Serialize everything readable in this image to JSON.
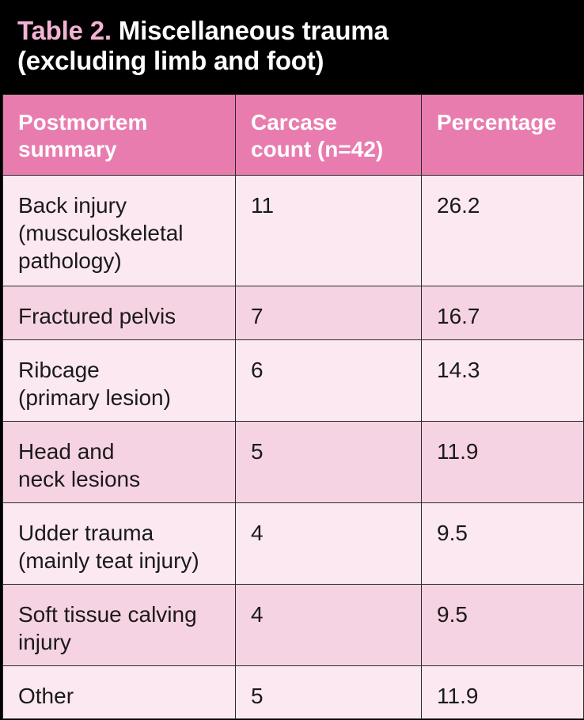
{
  "title": {
    "prefix": "Table 2.",
    "text": " Miscellaneous trauma\n(excluding limb and foot)"
  },
  "colors": {
    "title_background": "#000000",
    "title_prefix": "#f3b3d4",
    "header_background": "#e97cae",
    "row_light": "#fbe8f0",
    "row_dark": "#f6d3e3"
  },
  "table": {
    "headers": [
      "Postmortem\nsummary",
      "Carcase\ncount (n=42)",
      "Percentage"
    ],
    "rows": [
      {
        "summary": "Back injury\n(musculoskeletal\npathology)",
        "count": "11",
        "percentage": "26.2"
      },
      {
        "summary": "Fractured pelvis",
        "count": "7",
        "percentage": "16.7"
      },
      {
        "summary": "Ribcage\n(primary lesion)",
        "count": "6",
        "percentage": "14.3"
      },
      {
        "summary": "Head and\nneck lesions",
        "count": "5",
        "percentage": "11.9"
      },
      {
        "summary": "Udder trauma\n(mainly teat injury)",
        "count": "4",
        "percentage": "9.5"
      },
      {
        "summary": "Soft tissue calving\ninjury",
        "count": "4",
        "percentage": "9.5"
      },
      {
        "summary": "Other",
        "count": "5",
        "percentage": "11.9"
      }
    ]
  }
}
